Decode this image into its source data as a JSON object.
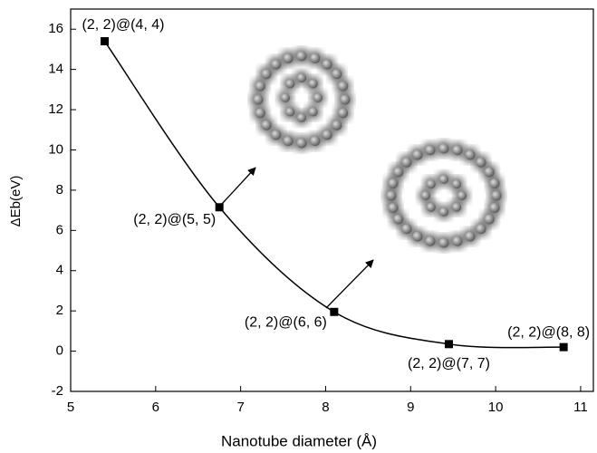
{
  "chart_data": {
    "type": "line",
    "xlabel": "Nanotube diameter (Å)",
    "ylabel": "ΔEb(eV)",
    "x": [
      5.4,
      6.75,
      8.1,
      9.45,
      10.8
    ],
    "series": [
      {
        "color": "#000000",
        "values": [
          15.4,
          7.15,
          1.95,
          0.35,
          0.2
        ]
      }
    ],
    "point_labels": [
      "(2, 2)@(4, 4)",
      "(2, 2)@(5, 5)",
      "(2, 2)@(6, 6)",
      "(2, 2)@(7, 7)",
      "(2, 2)@(8, 8)"
    ],
    "xlim": [
      5,
      11.15
    ],
    "ylim": [
      -2,
      17
    ],
    "xticks": [
      5,
      6,
      7,
      8,
      9,
      10,
      11
    ],
    "yticks": [
      -2,
      0,
      2,
      4,
      6,
      8,
      10,
      12,
      14,
      16
    ],
    "grid": false
  }
}
